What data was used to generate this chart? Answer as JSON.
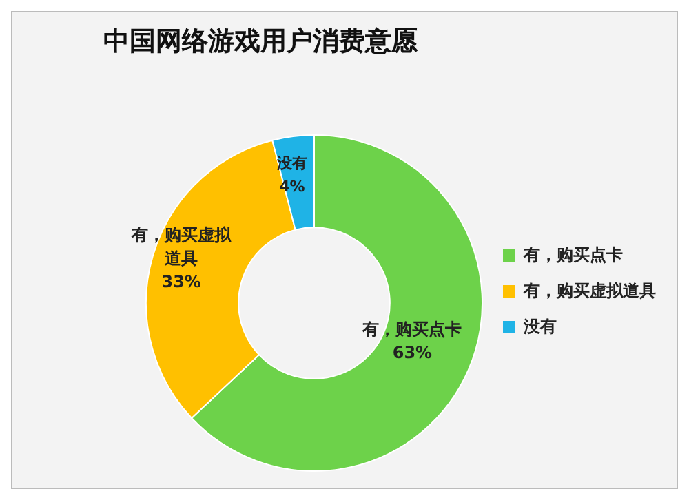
{
  "chart_data": {
    "type": "donut",
    "title": "中国网络游戏用户消费意愿",
    "categories": [
      "有，购买点卡",
      "有，购买虚拟道具",
      "没有"
    ],
    "values": [
      63,
      33,
      4
    ],
    "colors": [
      "#6dd24a",
      "#ffc000",
      "#1fb3e6"
    ],
    "value_labels": [
      "63%",
      "33%",
      "4%"
    ],
    "legend": "right"
  }
}
